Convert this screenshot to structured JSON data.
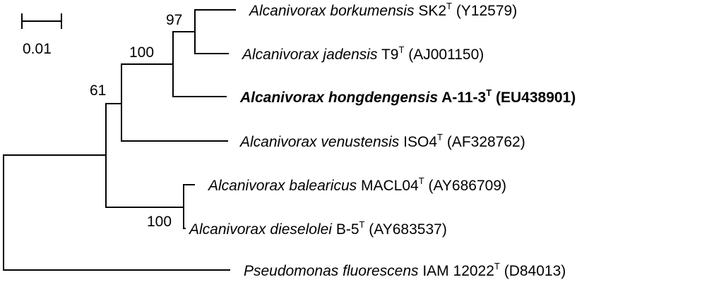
{
  "scale_bar": {
    "label": "0.01"
  },
  "bootstrap": {
    "borkumensis_jadensis": "97",
    "with_hongdengensis": "100",
    "with_venustensis": "61",
    "balearicus_dieselolei": "100"
  },
  "taxa": [
    {
      "key": "borkumensis",
      "genus": "Alcanivorax",
      "species": "borkumensis",
      "strain": "SK2",
      "type_mark": "T",
      "accession": "(Y12579)",
      "highlight": false
    },
    {
      "key": "jadensis",
      "genus": "Alcanivorax",
      "species": "jadensis",
      "strain": "T9",
      "type_mark": "T",
      "accession": "(AJ001150)",
      "highlight": false
    },
    {
      "key": "hongdengensis",
      "genus": "Alcanivorax",
      "species": "hongdengensis",
      "strain": "A-11-3",
      "type_mark": "T",
      "accession": "(EU438901)",
      "highlight": true
    },
    {
      "key": "venustensis",
      "genus": "Alcanivorax",
      "species": "venustensis",
      "strain": "ISO4",
      "type_mark": "T",
      "accession": "(AF328762)",
      "highlight": false
    },
    {
      "key": "balearicus",
      "genus": "Alcanivorax",
      "species": "balearicus",
      "strain": "MACL04",
      "type_mark": "T",
      "accession": "(AY686709)",
      "highlight": false
    },
    {
      "key": "dieselolei",
      "genus": "Alcanivorax",
      "species": "dieselolei",
      "strain": "B-5",
      "type_mark": "T",
      "accession": "(AY683537)",
      "highlight": false
    },
    {
      "key": "fluorescens",
      "genus": "Pseudomonas",
      "species": "fluorescens",
      "strain": "IAM 12022",
      "type_mark": "T",
      "accession": "(D84013)",
      "highlight": false
    }
  ]
}
